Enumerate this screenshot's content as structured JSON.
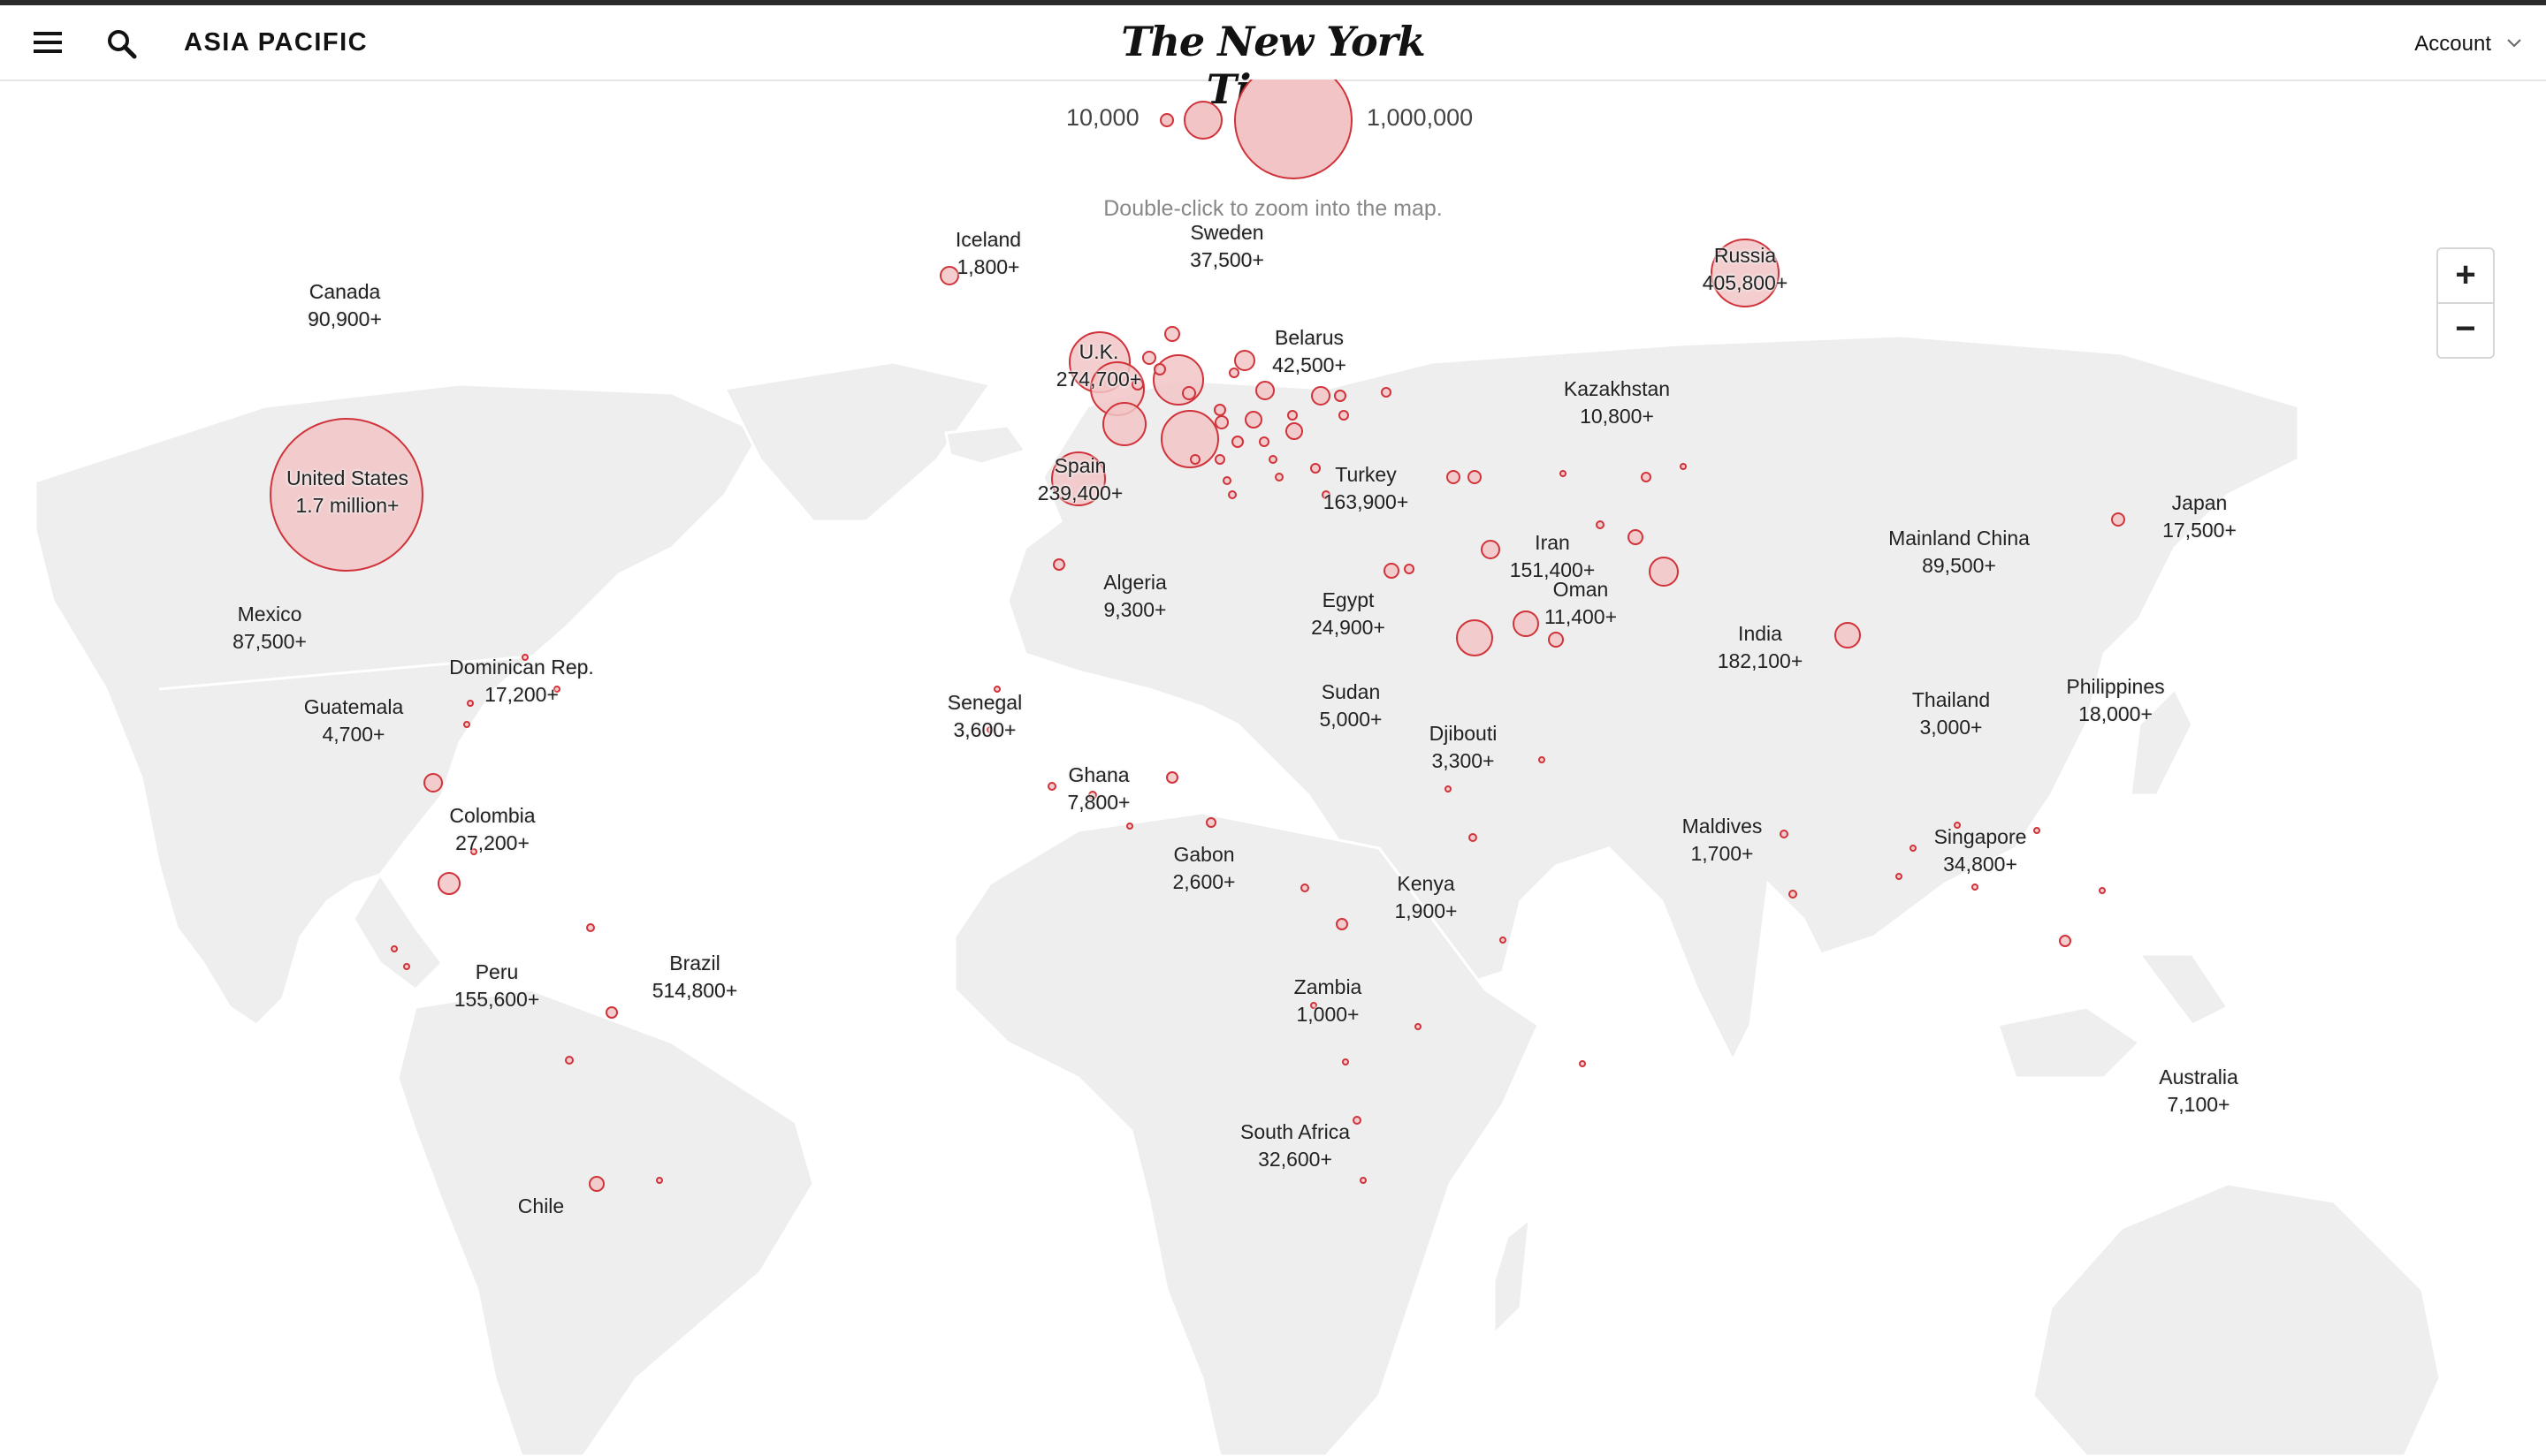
{
  "header": {
    "section": "ASIA PACIFIC",
    "masthead": "The New York Times",
    "account": "Account"
  },
  "legend": {
    "small_value": "10,000",
    "large_value": "1,000,000",
    "hint": "Double-click to zoom into the map."
  },
  "zoom": {
    "in": "+",
    "out": "−"
  },
  "colors": {
    "land": "#eeeeee",
    "bubble_fill": "#f2c4c6",
    "bubble_stroke": "#d0333a"
  },
  "countries": [
    {
      "name": "Canada",
      "cases": "90,900+"
    },
    {
      "name": "United States",
      "cases": "1.7 million+"
    },
    {
      "name": "Mexico",
      "cases": "87,500+"
    },
    {
      "name": "Dominican Rep.",
      "cases": "17,200+"
    },
    {
      "name": "Guatemala",
      "cases": "4,700+"
    },
    {
      "name": "Colombia",
      "cases": "27,200+"
    },
    {
      "name": "Peru",
      "cases": "155,600+"
    },
    {
      "name": "Brazil",
      "cases": "514,800+"
    },
    {
      "name": "Chile",
      "cases": ""
    },
    {
      "name": "Iceland",
      "cases": "1,800+"
    },
    {
      "name": "Sweden",
      "cases": "37,500+"
    },
    {
      "name": "U.K.",
      "cases": "274,700+"
    },
    {
      "name": "Belarus",
      "cases": "42,500+"
    },
    {
      "name": "Spain",
      "cases": "239,400+"
    },
    {
      "name": "Turkey",
      "cases": "163,900+"
    },
    {
      "name": "Algeria",
      "cases": "9,300+"
    },
    {
      "name": "Egypt",
      "cases": "24,900+"
    },
    {
      "name": "Senegal",
      "cases": "3,600+"
    },
    {
      "name": "Sudan",
      "cases": "5,000+"
    },
    {
      "name": "Ghana",
      "cases": "7,800+"
    },
    {
      "name": "Djibouti",
      "cases": "3,300+"
    },
    {
      "name": "Gabon",
      "cases": "2,600+"
    },
    {
      "name": "Kenya",
      "cases": "1,900+"
    },
    {
      "name": "Zambia",
      "cases": "1,000+"
    },
    {
      "name": "South Africa",
      "cases": "32,600+"
    },
    {
      "name": "Russia",
      "cases": "405,800+"
    },
    {
      "name": "Kazakhstan",
      "cases": "10,800+"
    },
    {
      "name": "Iran",
      "cases": "151,400+"
    },
    {
      "name": "Oman",
      "cases": "11,400+"
    },
    {
      "name": "India",
      "cases": "182,100+"
    },
    {
      "name": "Maldives",
      "cases": "1,700+"
    },
    {
      "name": "Mainland China",
      "cases": "89,500+"
    },
    {
      "name": "Japan",
      "cases": "17,500+"
    },
    {
      "name": "Thailand",
      "cases": "3,000+"
    },
    {
      "name": "Philippines",
      "cases": "18,000+"
    },
    {
      "name": "Singapore",
      "cases": "34,800+"
    },
    {
      "name": "Australia",
      "cases": "7,100+"
    }
  ]
}
